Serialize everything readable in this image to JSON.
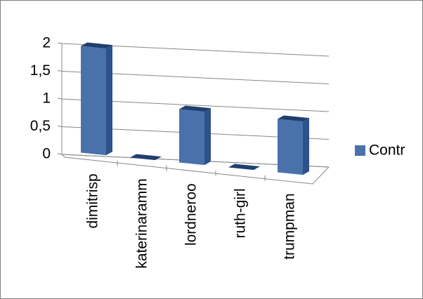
{
  "chart_data": {
    "type": "bar3d",
    "categories": [
      "dimitrisp",
      "katerinaramm",
      "lordneroo",
      "ruth-girl",
      "trumpman"
    ],
    "series": [
      {
        "name": "Contr",
        "color": "#4a72aa",
        "values": [
          2,
          0,
          1,
          0,
          1
        ]
      }
    ],
    "ylim": [
      0,
      2
    ],
    "yticks": [
      0,
      {
        "value": 0.5,
        "label": "0,5"
      },
      1,
      {
        "value": 1.5,
        "label": "1,5"
      },
      2
    ],
    "grid": true,
    "legend": "right"
  }
}
